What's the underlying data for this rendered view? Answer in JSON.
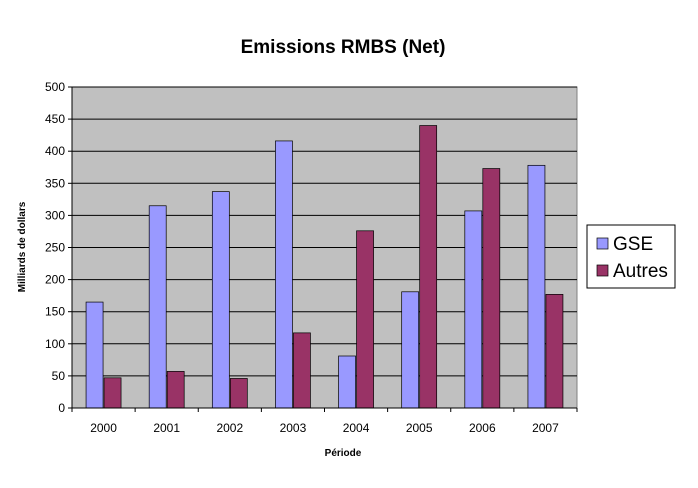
{
  "chart_data": {
    "type": "bar",
    "title": "Emissions RMBS (Net)",
    "xlabel": "Période",
    "ylabel": "Milliards de dollars",
    "categories": [
      "2000",
      "2001",
      "2002",
      "2003",
      "2004",
      "2005",
      "2006",
      "2007"
    ],
    "series": [
      {
        "name": "GSE",
        "color": "#9999ff",
        "values": [
          165,
          315,
          337,
          416,
          81,
          181,
          307,
          378
        ]
      },
      {
        "name": "Autres",
        "color": "#993366",
        "values": [
          47,
          57,
          46,
          117,
          276,
          440,
          373,
          177
        ]
      }
    ],
    "ylim": [
      0,
      500
    ],
    "yticks": [
      0,
      50,
      100,
      150,
      200,
      250,
      300,
      350,
      400,
      450,
      500
    ],
    "grid": true,
    "plot_background": "#c0c0c0",
    "legend_position": "right"
  }
}
